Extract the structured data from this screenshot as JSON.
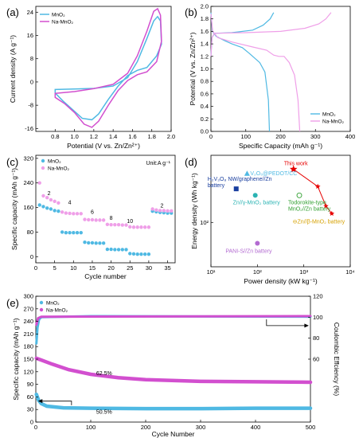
{
  "colors": {
    "mno2": "#4fb9e3",
    "na_mno2": "#d24fcf",
    "na_mno2_light": "#ef9fe8",
    "red": "#e60000",
    "navy": "#1a3f9f",
    "teal": "#2bb3b3",
    "green": "#2f9f2f",
    "orange": "#d6a100",
    "purple": "#b36bd1"
  },
  "chart_data": [
    {
      "panel": "(a)",
      "type": "line",
      "xlabel": "Potential (V vs. Zn/Zn²⁺)",
      "ylabel": "Current density (A g⁻¹)",
      "xlim": [
        0.6,
        2.0
      ],
      "ylim": [
        -17,
        26
      ],
      "xticks": [
        "0.8",
        "1.0",
        "1.2",
        "1.4",
        "1.6",
        "1.8",
        "2.0"
      ],
      "yticks": [
        "-16",
        "-8",
        "0",
        "8",
        "16",
        "24"
      ],
      "legend": [
        "MnO₂",
        "Na-MnO₂"
      ],
      "legend_position": "top-left",
      "series": [
        {
          "name": "MnO₂",
          "color": "#4fb9e3",
          "points": [
            [
              0.8,
              -2.6
            ],
            [
              1.0,
              -2.4
            ],
            [
              1.2,
              -2.2
            ],
            [
              1.4,
              -1.4
            ],
            [
              1.55,
              1.5
            ],
            [
              1.65,
              7
            ],
            [
              1.75,
              15
            ],
            [
              1.82,
              21
            ],
            [
              1.86,
              22.5
            ],
            [
              1.89,
              21
            ],
            [
              1.9,
              13
            ],
            [
              1.85,
              9
            ],
            [
              1.75,
              5
            ],
            [
              1.65,
              4
            ],
            [
              1.55,
              2.2
            ],
            [
              1.45,
              -1.5
            ],
            [
              1.35,
              -6
            ],
            [
              1.25,
              -11
            ],
            [
              1.18,
              -13
            ],
            [
              1.08,
              -12.5
            ],
            [
              0.98,
              -9.5
            ],
            [
              0.88,
              -6.5
            ],
            [
              0.8,
              -3.8
            ]
          ]
        },
        {
          "name": "Na-MnO₂",
          "color": "#d24fcf",
          "points": [
            [
              0.8,
              -3.9
            ],
            [
              1.0,
              -3.3
            ],
            [
              1.2,
              -2.3
            ],
            [
              1.4,
              -0.8
            ],
            [
              1.55,
              3
            ],
            [
              1.65,
              9
            ],
            [
              1.75,
              17.5
            ],
            [
              1.82,
              24.3
            ],
            [
              1.86,
              25.2
            ],
            [
              1.89,
              23
            ],
            [
              1.9,
              14
            ],
            [
              1.85,
              7
            ],
            [
              1.75,
              3.5
            ],
            [
              1.65,
              2.5
            ],
            [
              1.55,
              0.5
            ],
            [
              1.45,
              -3
            ],
            [
              1.35,
              -8
            ],
            [
              1.25,
              -13.5
            ],
            [
              1.18,
              -15.6
            ],
            [
              1.1,
              -14.5
            ],
            [
              1.0,
              -10.5
            ],
            [
              0.9,
              -7.5
            ],
            [
              0.8,
              -5.3
            ]
          ]
        }
      ]
    },
    {
      "panel": "(b)",
      "type": "line",
      "xlabel": "Specific Capacity (mAh g⁻¹)",
      "ylabel": "Potential (V vs. Zn/Zn²⁺)",
      "xlim": [
        0,
        400
      ],
      "ylim": [
        0.0,
        2.0
      ],
      "xticks": [
        "0",
        "100",
        "200",
        "300",
        "400"
      ],
      "yticks": [
        "0.0",
        "0.2",
        "0.4",
        "0.6",
        "0.8",
        "1.0",
        "1.2",
        "1.4",
        "1.6",
        "1.8",
        "2.0"
      ],
      "legend": [
        "MnO₂",
        "Na-MnO₂"
      ],
      "legend_position": "bottom-right",
      "series": [
        {
          "name": "MnO₂ charge",
          "color": "#4fb9e3",
          "points": [
            [
              0,
              1.2
            ],
            [
              3,
              1.5
            ],
            [
              10,
              1.57
            ],
            [
              60,
              1.58
            ],
            [
              120,
              1.62
            ],
            [
              150,
              1.7
            ],
            [
              170,
              1.8
            ],
            [
              180,
              1.9
            ]
          ]
        },
        {
          "name": "MnO₂ discharge",
          "color": "#4fb9e3",
          "points": [
            [
              0,
              1.9
            ],
            [
              4,
              1.6
            ],
            [
              15,
              1.52
            ],
            [
              40,
              1.45
            ],
            [
              60,
              1.4
            ],
            [
              90,
              1.34
            ],
            [
              110,
              1.25
            ],
            [
              120,
              1.2
            ],
            [
              140,
              1.1
            ],
            [
              155,
              0.95
            ],
            [
              165,
              0.5
            ],
            [
              168,
              0.0
            ]
          ]
        },
        {
          "name": "Na-MnO₂ charge",
          "color": "#ef9fe8",
          "points": [
            [
              0,
              1.2
            ],
            [
              3,
              1.5
            ],
            [
              10,
              1.57
            ],
            [
              100,
              1.58
            ],
            [
              200,
              1.6
            ],
            [
              270,
              1.65
            ],
            [
              310,
              1.72
            ],
            [
              330,
              1.8
            ],
            [
              345,
              1.9
            ]
          ]
        },
        {
          "name": "Na-MnO₂ discharge",
          "color": "#ef9fe8",
          "points": [
            [
              0,
              1.88
            ],
            [
              5,
              1.6
            ],
            [
              20,
              1.5
            ],
            [
              60,
              1.43
            ],
            [
              120,
              1.35
            ],
            [
              160,
              1.3
            ],
            [
              180,
              1.22
            ],
            [
              195,
              1.2
            ],
            [
              210,
              1.2
            ],
            [
              225,
              1.1
            ],
            [
              240,
              0.9
            ],
            [
              250,
              0.5
            ],
            [
              255,
              0.0
            ]
          ]
        }
      ]
    },
    {
      "panel": "(c)",
      "type": "scatter",
      "xlabel": "Cycle number",
      "ylabel": "Specific capacity (mAh g⁻¹)",
      "xlim": [
        0,
        37
      ],
      "ylim": [
        -20,
        330
      ],
      "xticks": [
        "0",
        "5",
        "10",
        "15",
        "20",
        "25",
        "30",
        "35"
      ],
      "yticks": [
        "0",
        "80",
        "160",
        "240",
        "320"
      ],
      "legend": [
        "MnO₂",
        "Na-MnO₂"
      ],
      "legend_position": "top-left",
      "unit_note": "Unit:A g⁻¹",
      "rate_labels": [
        {
          "text": "2",
          "x": 3.5,
          "y": 200
        },
        {
          "text": "4",
          "x": 9,
          "y": 170
        },
        {
          "text": "6",
          "x": 15,
          "y": 140
        },
        {
          "text": "8",
          "x": 20,
          "y": 120
        },
        {
          "text": "10",
          "x": 25,
          "y": 110
        },
        {
          "text": "2",
          "x": 33.5,
          "y": 160
        }
      ],
      "series": [
        {
          "name": "MnO₂",
          "color": "#4fb9e3",
          "values": [
            [
              1,
              168
            ],
            [
              2,
              163
            ],
            [
              3,
              158
            ],
            [
              4,
              155
            ],
            [
              5,
              150
            ],
            [
              6,
              148
            ],
            [
              7,
              80
            ],
            [
              8,
              78
            ],
            [
              9,
              78
            ],
            [
              10,
              78
            ],
            [
              11,
              78
            ],
            [
              12,
              78
            ],
            [
              13,
              47
            ],
            [
              14,
              45
            ],
            [
              15,
              45
            ],
            [
              16,
              44
            ],
            [
              17,
              44
            ],
            [
              18,
              44
            ],
            [
              19,
              24
            ],
            [
              20,
              24
            ],
            [
              21,
              23
            ],
            [
              22,
              23
            ],
            [
              23,
              23
            ],
            [
              24,
              23
            ],
            [
              25,
              10
            ],
            [
              26,
              9
            ],
            [
              27,
              8
            ],
            [
              28,
              8
            ],
            [
              29,
              8
            ],
            [
              30,
              8
            ],
            [
              31,
              148
            ],
            [
              32,
              146
            ],
            [
              33,
              144
            ],
            [
              34,
              143
            ],
            [
              35,
              142
            ],
            [
              36,
              142
            ]
          ]
        },
        {
          "name": "Na-MnO₂",
          "color": "#ef9fe8",
          "values": [
            [
              1,
              240
            ],
            [
              2,
              198
            ],
            [
              3,
              192
            ],
            [
              4,
              185
            ],
            [
              5,
              180
            ],
            [
              6,
              175
            ],
            [
              7,
              145
            ],
            [
              8,
              142
            ],
            [
              9,
              141
            ],
            [
              10,
              140
            ],
            [
              11,
              140
            ],
            [
              12,
              140
            ],
            [
              13,
              121
            ],
            [
              14,
              120
            ],
            [
              15,
              120
            ],
            [
              16,
              119
            ],
            [
              17,
              119
            ],
            [
              18,
              119
            ],
            [
              19,
              105
            ],
            [
              20,
              104
            ],
            [
              21,
              104
            ],
            [
              22,
              104
            ],
            [
              23,
              103
            ],
            [
              24,
              103
            ],
            [
              25,
              97
            ],
            [
              26,
              96
            ],
            [
              27,
              96
            ],
            [
              28,
              96
            ],
            [
              29,
              96
            ],
            [
              30,
              96
            ],
            [
              31,
              155
            ],
            [
              32,
              152
            ],
            [
              33,
              150
            ],
            [
              34,
              150
            ],
            [
              35,
              149
            ],
            [
              36,
              149
            ]
          ]
        }
      ]
    },
    {
      "panel": "(d)",
      "type": "scatter",
      "scale": "log-log",
      "xlabel": "Power density (kW kg⁻¹)",
      "ylabel": "Energy density (Wh kg⁻¹)",
      "xlim": [
        10,
        10000
      ],
      "ylim": [
        40,
        400
      ],
      "xticks": [
        "10¹",
        "10²",
        "10³",
        "10⁴"
      ],
      "yticks": [
        "10²"
      ],
      "this_work": {
        "label": "This work",
        "color": "#e60000",
        "points": [
          [
            600,
            300
          ],
          [
            2000,
            210
          ],
          [
            3000,
            140
          ],
          [
            4000,
            120
          ]
        ]
      },
      "references": [
        {
          "label": "V₂O₅@PEDOT/CC",
          "marker": "triangle",
          "color": "#4fb9e3",
          "x": 60,
          "y": 275
        },
        {
          "label": "H₂V₃O₈ NW/graphene//Zn battery",
          "marker": "square",
          "color": "#1a3f9f",
          "x": 35,
          "y": 200
        },
        {
          "label": "Zn//γ-MnO₂ battery",
          "marker": "circle",
          "color": "#2bb3b3",
          "x": 90,
          "y": 175
        },
        {
          "label": "Todorokite-type MnO₂//Zn battery",
          "marker": "circle-open",
          "color": "#2f9f2f",
          "x": 800,
          "y": 175
        },
        {
          "label": "Zn//β-MnO₂ battery",
          "marker": "circle-open",
          "color": "#d6a100",
          "x": 1000,
          "y": 95
        },
        {
          "label": "PANI-S//Zn battery",
          "marker": "circle",
          "color": "#b36bd1",
          "x": 100,
          "y": 65
        }
      ]
    },
    {
      "panel": "(e)",
      "type": "line",
      "xlabel": "Cycle Number",
      "ylabel": "Specific capacity (mAh g⁻¹)",
      "y2label": "Coulombic Effciency (%)",
      "xlim": [
        0,
        500
      ],
      "ylim": [
        0,
        300
      ],
      "y2lim": [
        0,
        120
      ],
      "xticks": [
        "0",
        "100",
        "200",
        "300",
        "400",
        "500"
      ],
      "yticks": [
        "0",
        "30",
        "60",
        "90",
        "120",
        "150",
        "180",
        "210",
        "240",
        "270",
        "300"
      ],
      "y2ticks": [
        "60",
        "80",
        "100",
        "120"
      ],
      "legend": [
        "MnO₂",
        "Na-MnO₂"
      ],
      "legend_position": "top-left",
      "annotations": [
        "62.5%",
        "50.5%"
      ],
      "series": [
        {
          "name": "MnO₂ capacity",
          "color": "#4fb9e3",
          "axis": "left",
          "points": [
            [
              1,
              66
            ],
            [
              5,
              52
            ],
            [
              10,
              44
            ],
            [
              20,
              38
            ],
            [
              50,
              34
            ],
            [
              100,
              33
            ],
            [
              200,
              32
            ],
            [
              300,
              32
            ],
            [
              400,
              33
            ],
            [
              500,
              33
            ]
          ]
        },
        {
          "name": "Na-MnO₂ capacity",
          "color": "#d24fcf",
          "axis": "left",
          "points": [
            [
              1,
              152
            ],
            [
              10,
              148
            ],
            [
              30,
              138
            ],
            [
              60,
              125
            ],
            [
              100,
              114
            ],
            [
              150,
              106
            ],
            [
              200,
              101
            ],
            [
              300,
              97
            ],
            [
              400,
              96
            ],
            [
              500,
              95
            ]
          ]
        },
        {
          "name": "MnO₂ efficiency",
          "color": "#4fb9e3",
          "axis": "right",
          "points": [
            [
              1,
              75
            ],
            [
              3,
              90
            ],
            [
              6,
              98
            ],
            [
              10,
              100
            ],
            [
              100,
              101
            ],
            [
              500,
              100.5
            ]
          ]
        },
        {
          "name": "Na-MnO₂ efficiency",
          "color": "#d24fcf",
          "axis": "right",
          "points": [
            [
              1,
              93
            ],
            [
              4,
              99
            ],
            [
              10,
              100.5
            ],
            [
              500,
              101
            ]
          ]
        }
      ]
    }
  ]
}
